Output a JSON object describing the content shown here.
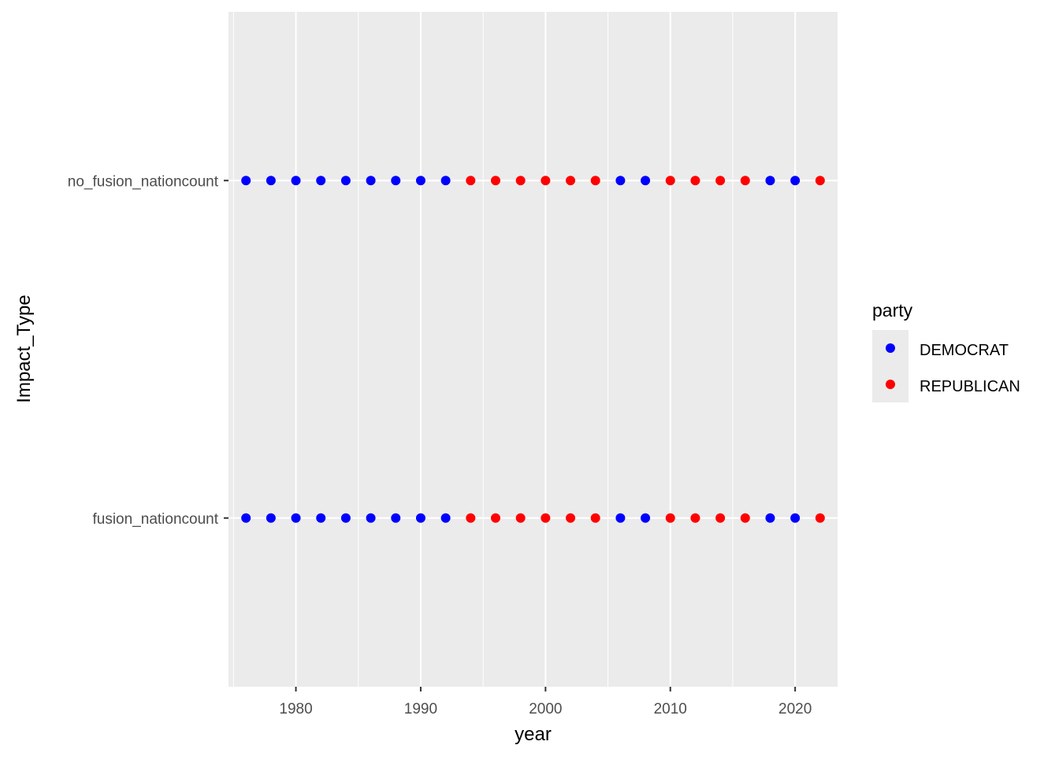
{
  "chart_data": {
    "type": "scatter",
    "title": "",
    "xlabel": "year",
    "ylabel": "Impact_Type",
    "xlim": [
      1974.6,
      2023.4
    ],
    "x_ticks": [
      1980,
      1990,
      2000,
      2010,
      2020
    ],
    "categories": [
      "no_fusion_nationcount",
      "fusion_nationcount"
    ],
    "grid": true,
    "legend": {
      "title": "party",
      "position": "right"
    },
    "series": [
      {
        "name": "DEMOCRAT",
        "color": "#0000ff",
        "points": [
          {
            "x": 1976,
            "y": "no_fusion_nationcount"
          },
          {
            "x": 1978,
            "y": "no_fusion_nationcount"
          },
          {
            "x": 1980,
            "y": "no_fusion_nationcount"
          },
          {
            "x": 1982,
            "y": "no_fusion_nationcount"
          },
          {
            "x": 1984,
            "y": "no_fusion_nationcount"
          },
          {
            "x": 1986,
            "y": "no_fusion_nationcount"
          },
          {
            "x": 1988,
            "y": "no_fusion_nationcount"
          },
          {
            "x": 1990,
            "y": "no_fusion_nationcount"
          },
          {
            "x": 1992,
            "y": "no_fusion_nationcount"
          },
          {
            "x": 2006,
            "y": "no_fusion_nationcount"
          },
          {
            "x": 2008,
            "y": "no_fusion_nationcount"
          },
          {
            "x": 2018,
            "y": "no_fusion_nationcount"
          },
          {
            "x": 2020,
            "y": "no_fusion_nationcount"
          },
          {
            "x": 1976,
            "y": "fusion_nationcount"
          },
          {
            "x": 1978,
            "y": "fusion_nationcount"
          },
          {
            "x": 1980,
            "y": "fusion_nationcount"
          },
          {
            "x": 1982,
            "y": "fusion_nationcount"
          },
          {
            "x": 1984,
            "y": "fusion_nationcount"
          },
          {
            "x": 1986,
            "y": "fusion_nationcount"
          },
          {
            "x": 1988,
            "y": "fusion_nationcount"
          },
          {
            "x": 1990,
            "y": "fusion_nationcount"
          },
          {
            "x": 1992,
            "y": "fusion_nationcount"
          },
          {
            "x": 2006,
            "y": "fusion_nationcount"
          },
          {
            "x": 2008,
            "y": "fusion_nationcount"
          },
          {
            "x": 2018,
            "y": "fusion_nationcount"
          },
          {
            "x": 2020,
            "y": "fusion_nationcount"
          }
        ]
      },
      {
        "name": "REPUBLICAN",
        "color": "#ff0000",
        "points": [
          {
            "x": 1994,
            "y": "no_fusion_nationcount"
          },
          {
            "x": 1996,
            "y": "no_fusion_nationcount"
          },
          {
            "x": 1998,
            "y": "no_fusion_nationcount"
          },
          {
            "x": 2000,
            "y": "no_fusion_nationcount"
          },
          {
            "x": 2002,
            "y": "no_fusion_nationcount"
          },
          {
            "x": 2004,
            "y": "no_fusion_nationcount"
          },
          {
            "x": 2010,
            "y": "no_fusion_nationcount"
          },
          {
            "x": 2012,
            "y": "no_fusion_nationcount"
          },
          {
            "x": 2014,
            "y": "no_fusion_nationcount"
          },
          {
            "x": 2016,
            "y": "no_fusion_nationcount"
          },
          {
            "x": 2022,
            "y": "no_fusion_nationcount"
          },
          {
            "x": 1994,
            "y": "fusion_nationcount"
          },
          {
            "x": 1996,
            "y": "fusion_nationcount"
          },
          {
            "x": 1998,
            "y": "fusion_nationcount"
          },
          {
            "x": 2000,
            "y": "fusion_nationcount"
          },
          {
            "x": 2002,
            "y": "fusion_nationcount"
          },
          {
            "x": 2004,
            "y": "fusion_nationcount"
          },
          {
            "x": 2010,
            "y": "fusion_nationcount"
          },
          {
            "x": 2012,
            "y": "fusion_nationcount"
          },
          {
            "x": 2014,
            "y": "fusion_nationcount"
          },
          {
            "x": 2016,
            "y": "fusion_nationcount"
          },
          {
            "x": 2022,
            "y": "fusion_nationcount"
          }
        ]
      }
    ]
  }
}
